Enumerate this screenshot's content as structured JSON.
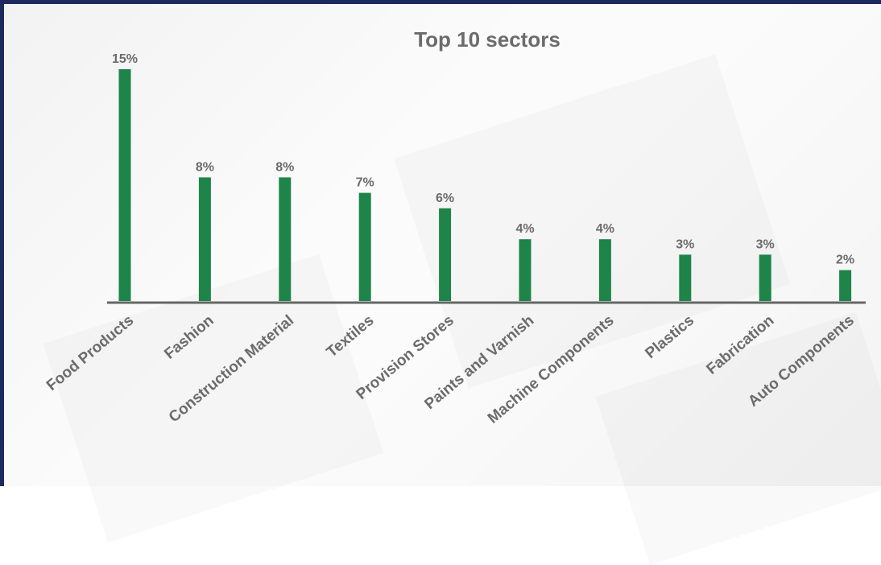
{
  "chart_data": {
    "type": "bar",
    "title": "Top 10 sectors",
    "categories": [
      "Food Products",
      "Fashion",
      "Construction Material",
      "Textiles",
      "Provision Stores",
      "Paints and Varnish",
      "Machine Components",
      "Plastics",
      "Fabrication",
      "Auto Components"
    ],
    "values": [
      15,
      8,
      8,
      7,
      6,
      4,
      4,
      3,
      3,
      2
    ],
    "data_labels": [
      "15%",
      "8%",
      "8%",
      "7%",
      "6%",
      "4%",
      "4%",
      "3%",
      "3%",
      "2%"
    ],
    "value_unit": "%",
    "ylim": [
      0,
      15
    ],
    "grid": false,
    "legend": "none",
    "colors": {
      "bar": "#1e8449",
      "axis": "#666666",
      "text": "#6b6b6b",
      "frame": "#1d2a5c"
    }
  }
}
